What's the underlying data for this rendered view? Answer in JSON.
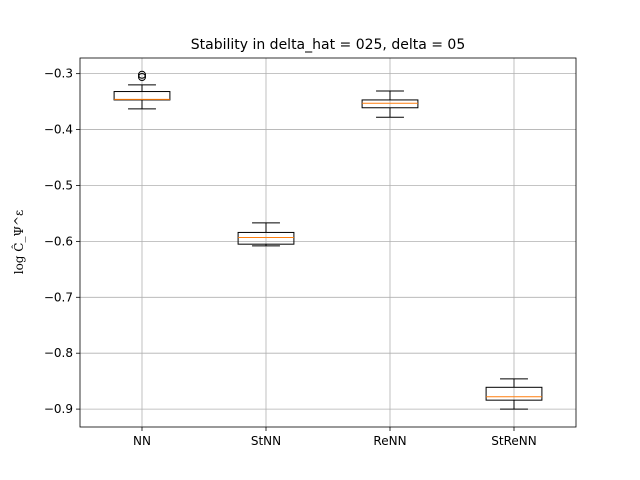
{
  "chart_data": {
    "type": "boxplot",
    "title": "Stability in delta_hat = 025, delta = 05",
    "xlabel": "",
    "ylabel": "log Ĉ_Ψ^ε",
    "categories": [
      "NN",
      "StNN",
      "ReNN",
      "StReNN"
    ],
    "ylim": [
      -0.932,
      -0.272
    ],
    "yticks": [
      -0.3,
      -0.4,
      -0.5,
      -0.6,
      -0.7,
      -0.8,
      -0.9
    ],
    "ytick_labels": [
      "−0.3",
      "−0.4",
      "−0.5",
      "−0.6",
      "−0.7",
      "−0.8",
      "−0.9"
    ],
    "grid": true,
    "boxes": [
      {
        "name": "NN",
        "whisker_low": -0.363,
        "q1": -0.347,
        "median": -0.346,
        "q3": -0.332,
        "whisker_high": -0.32,
        "outliers": [
          -0.302,
          -0.306
        ]
      },
      {
        "name": "StNN",
        "whisker_low": -0.608,
        "q1": -0.605,
        "median": -0.593,
        "q3": -0.584,
        "whisker_high": -0.567,
        "outliers": []
      },
      {
        "name": "ReNN",
        "whisker_low": -0.378,
        "q1": -0.361,
        "median": -0.353,
        "q3": -0.347,
        "whisker_high": -0.331,
        "outliers": []
      },
      {
        "name": "StReNN",
        "whisker_low": -0.9,
        "q1": -0.884,
        "median": -0.878,
        "q3": -0.861,
        "whisker_high": -0.846,
        "outliers": []
      }
    ],
    "colors": {
      "box": "#000000",
      "median": "#ff7f0e",
      "grid": "#b0b0b0"
    }
  }
}
